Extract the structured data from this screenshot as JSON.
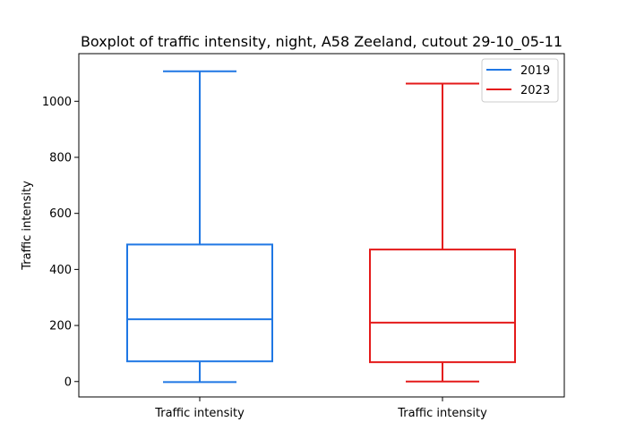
{
  "chart_data": {
    "type": "boxplot",
    "title": "Boxplot of traffic intensity, night, A58 Zeeland, cutout 29-10_05-11",
    "xlabel": "",
    "ylabel": "Traffic intensity",
    "ylim": [
      -55,
      1170
    ],
    "yticks": [
      0,
      200,
      400,
      600,
      800,
      1000
    ],
    "categories": [
      "Traffic intensity",
      "Traffic intensity"
    ],
    "series": [
      {
        "name": "2019",
        "color": "#1f77e4",
        "whisker_low": -2,
        "q1": 72,
        "median": 222,
        "q3": 489,
        "whisker_high": 1107
      },
      {
        "name": "2023",
        "color": "#e41a1a",
        "whisker_low": 0,
        "q1": 69,
        "median": 210,
        "q3": 471,
        "whisker_high": 1063
      }
    ],
    "legend": {
      "position": "top-right",
      "entries": [
        "2019",
        "2023"
      ]
    },
    "grid": false
  }
}
